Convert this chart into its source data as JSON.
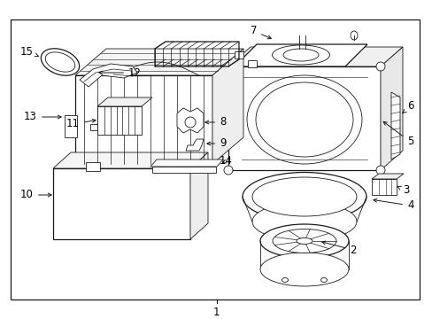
{
  "bg_color": "#ffffff",
  "border_color": "#000000",
  "line_color": "#1a1a1a",
  "text_color": "#000000",
  "font_size": 8.5,
  "border_lw": 1.0,
  "fig_w": 4.89,
  "fig_h": 3.6,
  "dpi": 100
}
